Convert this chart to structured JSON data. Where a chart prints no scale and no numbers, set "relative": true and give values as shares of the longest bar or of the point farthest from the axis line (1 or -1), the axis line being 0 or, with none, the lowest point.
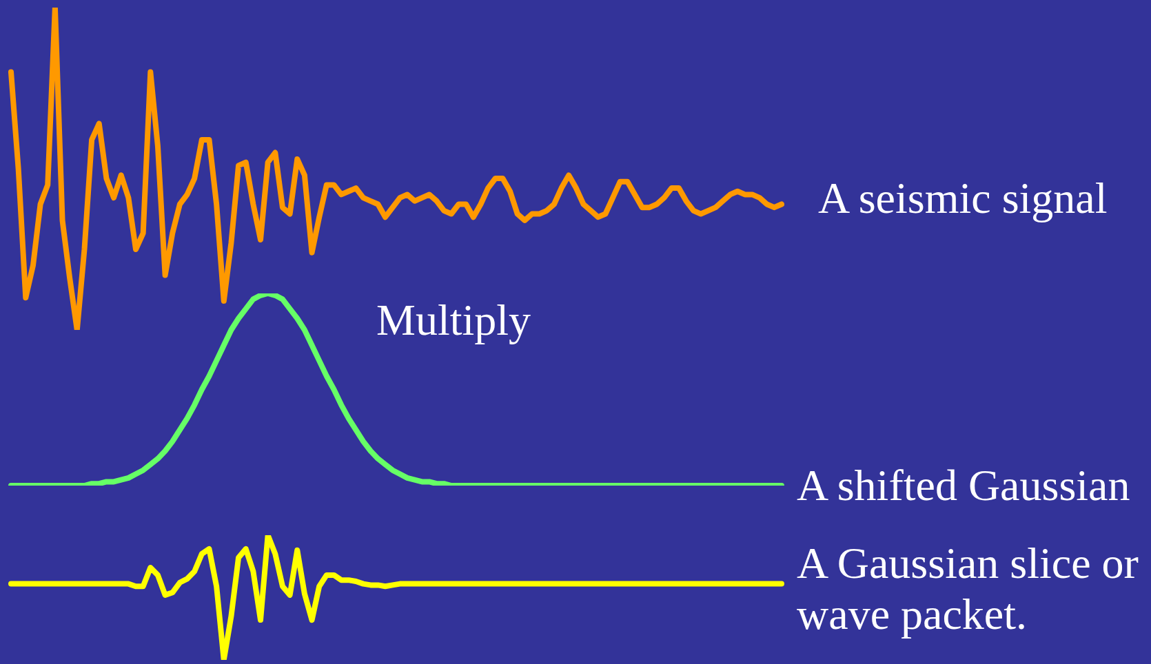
{
  "chart_data": [
    {
      "type": "line",
      "relative": true,
      "legend": false,
      "marker": "none",
      "line_style": "solid",
      "categories": [
        null,
        null,
        null,
        null,
        null,
        null,
        null,
        null,
        null,
        null,
        null,
        null,
        null,
        null,
        null,
        null,
        null,
        null,
        null,
        null,
        null,
        null,
        null,
        null,
        null,
        null,
        null,
        null,
        null,
        null,
        null,
        null,
        null,
        null,
        null,
        null,
        null,
        null,
        null,
        null,
        null,
        null,
        null,
        null,
        null,
        null,
        null,
        null,
        null,
        null,
        null,
        null,
        null,
        null,
        null,
        null,
        null,
        null,
        null,
        null,
        null,
        null,
        null,
        null,
        null,
        null,
        null,
        null,
        null,
        null,
        null,
        null,
        null,
        null,
        null,
        null,
        null,
        null,
        null,
        null,
        null,
        null,
        null,
        null,
        null,
        null,
        null,
        null,
        null,
        null,
        null,
        null,
        null,
        null,
        null,
        null,
        null,
        null,
        null,
        null,
        null,
        null,
        null,
        null,
        null,
        null
      ],
      "series": [
        {
          "name": "A seismic signal",
          "color": "#ff9900",
          "values": [
            0.8,
            0.5,
            0.1,
            0.2,
            0.39,
            0.45,
            1,
            0.34,
            0.16,
            0,
            0.25,
            0.59,
            0.64,
            0.47,
            0.41,
            0.48,
            0.41,
            0.25,
            0.3,
            0.8,
            0.57,
            0.17,
            0.3,
            0.39,
            0.42,
            0.47,
            0.59,
            0.59,
            0.39,
            0.09,
            0.27,
            0.51,
            0.52,
            0.39,
            0.28,
            0.52,
            0.55,
            0.38,
            0.36,
            0.53,
            0.48,
            0.24,
            0.35,
            0.45,
            0.45,
            0.42,
            0.43,
            0.44,
            0.41,
            0.4,
            0.39,
            0.35,
            0.38,
            0.41,
            0.42,
            0.4,
            0.41,
            0.42,
            0.4,
            0.37,
            0.36,
            0.39,
            0.39,
            0.35,
            0.39,
            0.44,
            0.47,
            0.47,
            0.43,
            0.36,
            0.34,
            0.36,
            0.36,
            0.37,
            0.39,
            0.44,
            0.48,
            0.44,
            0.39,
            0.37,
            0.35,
            0.36,
            0.41,
            0.46,
            0.46,
            0.42,
            0.38,
            0.38,
            0.39,
            0.41,
            0.44,
            0.44,
            0.4,
            0.37,
            0.36,
            0.37,
            0.38,
            0.4,
            0.42,
            0.43,
            0.42,
            0.42,
            0.41,
            0.39,
            0.38,
            0.39
          ]
        }
      ]
    },
    {
      "type": "line",
      "relative": true,
      "legend": false,
      "marker": "none",
      "line_style": "solid",
      "annotations": [
        "Multiply"
      ],
      "categories": [
        null,
        null,
        null,
        null,
        null,
        null,
        null,
        null,
        null,
        null,
        null,
        null,
        null,
        null,
        null,
        null,
        null,
        null,
        null,
        null,
        null,
        null,
        null,
        null,
        null,
        null,
        null,
        null,
        null,
        null,
        null,
        null,
        null,
        null,
        null,
        null,
        null,
        null,
        null,
        null,
        null,
        null,
        null,
        null,
        null,
        null,
        null,
        null,
        null,
        null,
        null,
        null,
        null,
        null,
        null,
        null,
        null,
        null,
        null,
        null,
        null,
        null,
        null,
        null,
        null,
        null,
        null,
        null,
        null,
        null,
        null,
        null,
        null,
        null,
        null,
        null,
        null,
        null,
        null,
        null,
        null,
        null,
        null,
        null,
        null,
        null,
        null,
        null,
        null,
        null,
        null,
        null,
        null,
        null,
        null,
        null,
        null,
        null,
        null,
        null,
        null,
        null,
        null,
        null,
        null,
        null
      ],
      "series": [
        {
          "name": "A shifted Gaussian",
          "color": "#66ff66",
          "values": [
            0,
            0,
            0,
            0,
            0,
            0,
            0,
            0,
            0,
            0,
            0,
            0.01,
            0.01,
            0.02,
            0.02,
            0.03,
            0.04,
            0.06,
            0.08,
            0.11,
            0.14,
            0.18,
            0.23,
            0.29,
            0.35,
            0.42,
            0.5,
            0.57,
            0.65,
            0.73,
            0.81,
            0.87,
            0.92,
            0.97,
            0.99,
            1,
            0.99,
            0.97,
            0.92,
            0.87,
            0.81,
            0.73,
            0.65,
            0.57,
            0.5,
            0.42,
            0.35,
            0.29,
            0.23,
            0.18,
            0.14,
            0.11,
            0.08,
            0.06,
            0.04,
            0.03,
            0.02,
            0.02,
            0.01,
            0.01,
            0,
            0,
            0,
            0,
            0,
            0,
            0,
            0,
            0,
            0,
            0,
            0,
            0,
            0,
            0,
            0,
            0,
            0,
            0,
            0,
            0,
            0,
            0,
            0,
            0,
            0,
            0,
            0,
            0,
            0,
            0,
            0,
            0,
            0,
            0,
            0,
            0,
            0,
            0,
            0,
            0,
            0,
            0,
            0,
            0,
            0
          ]
        }
      ]
    },
    {
      "type": "line",
      "relative": true,
      "legend": false,
      "marker": "none",
      "line_style": "solid",
      "categories": [
        null,
        null,
        null,
        null,
        null,
        null,
        null,
        null,
        null,
        null,
        null,
        null,
        null,
        null,
        null,
        null,
        null,
        null,
        null,
        null,
        null,
        null,
        null,
        null,
        null,
        null,
        null,
        null,
        null,
        null,
        null,
        null,
        null,
        null,
        null,
        null,
        null,
        null,
        null,
        null,
        null,
        null,
        null,
        null,
        null,
        null,
        null,
        null,
        null,
        null,
        null,
        null,
        null,
        null,
        null,
        null,
        null,
        null,
        null,
        null,
        null,
        null,
        null,
        null,
        null,
        null,
        null,
        null,
        null,
        null,
        null,
        null,
        null,
        null,
        null,
        null,
        null,
        null,
        null,
        null,
        null,
        null,
        null,
        null,
        null,
        null,
        null,
        null,
        null,
        null,
        null,
        null,
        null,
        null,
        null,
        null,
        null,
        null,
        null,
        null,
        null,
        null,
        null,
        null,
        null,
        null
      ],
      "series": [
        {
          "name": "A Gaussian slice or wave packet.",
          "color": "#ffff00",
          "values": [
            0.61,
            0.61,
            0.61,
            0.61,
            0.61,
            0.61,
            0.61,
            0.61,
            0.61,
            0.61,
            0.61,
            0.61,
            0.61,
            0.61,
            0.61,
            0.61,
            0.61,
            0.59,
            0.59,
            0.74,
            0.68,
            0.52,
            0.54,
            0.62,
            0.65,
            0.71,
            0.85,
            0.89,
            0.59,
            0,
            0.35,
            0.82,
            0.89,
            0.71,
            0.32,
            1,
            0.85,
            0.59,
            0.52,
            0.88,
            0.53,
            0.32,
            0.59,
            0.68,
            0.68,
            0.64,
            0.64,
            0.63,
            0.61,
            0.6,
            0.6,
            0.59,
            0.6,
            0.61,
            0.61,
            0.61,
            0.61,
            0.61,
            0.61,
            0.61,
            0.61,
            0.61,
            0.61,
            0.61,
            0.61,
            0.61,
            0.61,
            0.61,
            0.61,
            0.61,
            0.61,
            0.61,
            0.61,
            0.61,
            0.61,
            0.61,
            0.61,
            0.61,
            0.61,
            0.61,
            0.61,
            0.61,
            0.61,
            0.61,
            0.61,
            0.61,
            0.61,
            0.61,
            0.61,
            0.61,
            0.61,
            0.61,
            0.61,
            0.61,
            0.61,
            0.61,
            0.61,
            0.61,
            0.61,
            0.61,
            0.61,
            0.61,
            0.61,
            0.61,
            0.61,
            0.61
          ]
        }
      ]
    }
  ]
}
